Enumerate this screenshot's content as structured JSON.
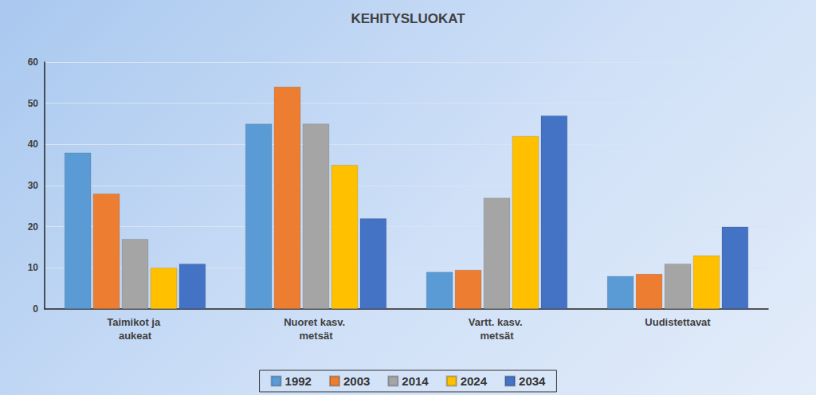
{
  "chart_data": {
    "type": "bar",
    "title": "KEHITYSLUOKAT",
    "categories": [
      "Taimikot ja aukeat",
      "Nuoret kasv. metsät",
      "Vartt. kasv. metsät",
      "Uudistettavat"
    ],
    "series": [
      {
        "name": "1992",
        "color": "#5b9bd5",
        "values": [
          38,
          45,
          9,
          8
        ]
      },
      {
        "name": "2003",
        "color": "#ed7d31",
        "values": [
          28,
          54,
          9.5,
          8.5
        ]
      },
      {
        "name": "2014",
        "color": "#a5a5a5",
        "values": [
          17,
          45,
          27,
          11
        ]
      },
      {
        "name": "2024",
        "color": "#ffc000",
        "values": [
          10,
          35,
          42,
          13
        ]
      },
      {
        "name": "2034",
        "color": "#4472c4",
        "values": [
          11,
          22,
          47,
          20
        ]
      }
    ],
    "ylim": [
      0,
      60
    ],
    "yticks": [
      0,
      10,
      20,
      30,
      40,
      50,
      60
    ],
    "grid": true,
    "legend": "bottom"
  }
}
